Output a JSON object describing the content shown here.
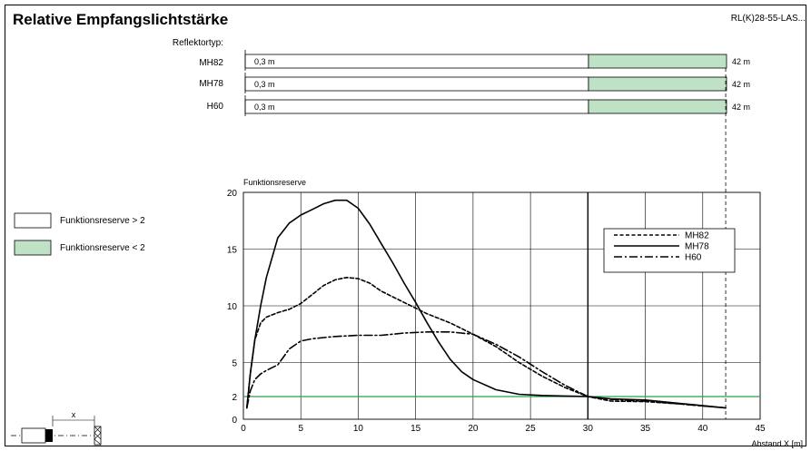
{
  "header": {
    "title": "Relative Empfangslichtstärke",
    "code": "RL(K)28-55-LAS..."
  },
  "reflector": {
    "label": "Reflektortyp:",
    "rows": [
      {
        "name": "MH82",
        "min": "0,3 m",
        "max": "42 m"
      },
      {
        "name": "MH78",
        "min": "0,3 m",
        "max": "42 m"
      },
      {
        "name": "H60",
        "min": "0,3 m",
        "max": "42 m"
      }
    ]
  },
  "legend_boxes": [
    {
      "label": "Funktionsreserve > 2",
      "color": "#ffffff"
    },
    {
      "label": "Funktionsreserve < 2",
      "color": "#bfe2c6"
    }
  ],
  "colors": {
    "threshold_line": "#2a9d4a",
    "green_fill": "#bfe2c6"
  },
  "diagram": {
    "x_label": "x"
  },
  "chart_data": {
    "type": "line",
    "title": "Funktionsreserve",
    "xlabel": "Abstand X [m]",
    "ylabel": "Funktionsreserve",
    "xlim": [
      0,
      45
    ],
    "ylim": [
      0,
      20
    ],
    "xticks": [
      0,
      5,
      10,
      15,
      20,
      25,
      30,
      35,
      40,
      45
    ],
    "yticks": [
      0,
      2,
      5,
      10,
      15,
      20
    ],
    "threshold": 2,
    "grid": true,
    "legend_position": "top-right",
    "series": [
      {
        "name": "MH82",
        "style": "dashed",
        "x": [
          0.3,
          0.6,
          1,
          1.5,
          2,
          3,
          4,
          5,
          6,
          7,
          8,
          9,
          10,
          11,
          12,
          14,
          16,
          18,
          20,
          22,
          24,
          26,
          28,
          30,
          32,
          35,
          38,
          42
        ],
        "y": [
          1,
          4,
          7,
          8.5,
          9,
          9.4,
          9.7,
          10.2,
          11,
          11.8,
          12.3,
          12.5,
          12.4,
          12,
          11.3,
          10.3,
          9.3,
          8.5,
          7.5,
          6.4,
          5,
          3.8,
          2.8,
          2,
          1.6,
          1.55,
          1.35,
          1
        ]
      },
      {
        "name": "MH78",
        "style": "solid",
        "x": [
          0.3,
          0.6,
          1,
          1.5,
          2,
          3,
          4,
          5,
          6,
          7,
          8,
          9,
          10,
          11,
          12,
          13,
          14,
          15,
          16,
          17,
          18,
          19,
          20,
          22,
          24,
          26,
          28,
          30,
          32,
          35,
          38,
          42
        ],
        "y": [
          1,
          4,
          7,
          10,
          12.5,
          16,
          17.3,
          18,
          18.5,
          19,
          19.3,
          19.3,
          18.6,
          17.2,
          15.5,
          13.8,
          12,
          10.3,
          8.5,
          6.8,
          5.3,
          4.2,
          3.5,
          2.6,
          2.2,
          2.1,
          2.05,
          2,
          1.8,
          1.7,
          1.4,
          1
        ]
      },
      {
        "name": "H60",
        "style": "dashdot",
        "x": [
          0.3,
          0.6,
          1,
          1.5,
          2,
          3,
          4,
          5,
          6,
          7,
          8,
          10,
          12,
          13,
          14,
          16,
          18,
          20,
          22,
          24,
          26,
          28,
          30,
          32,
          35,
          38,
          42
        ],
        "y": [
          1,
          2.5,
          3.5,
          4,
          4.3,
          4.8,
          6.2,
          6.9,
          7.1,
          7.2,
          7.3,
          7.4,
          7.4,
          7.5,
          7.6,
          7.7,
          7.7,
          7.5,
          6.6,
          5.5,
          4.2,
          3,
          2,
          1.75,
          1.6,
          1.35,
          1
        ]
      }
    ]
  }
}
